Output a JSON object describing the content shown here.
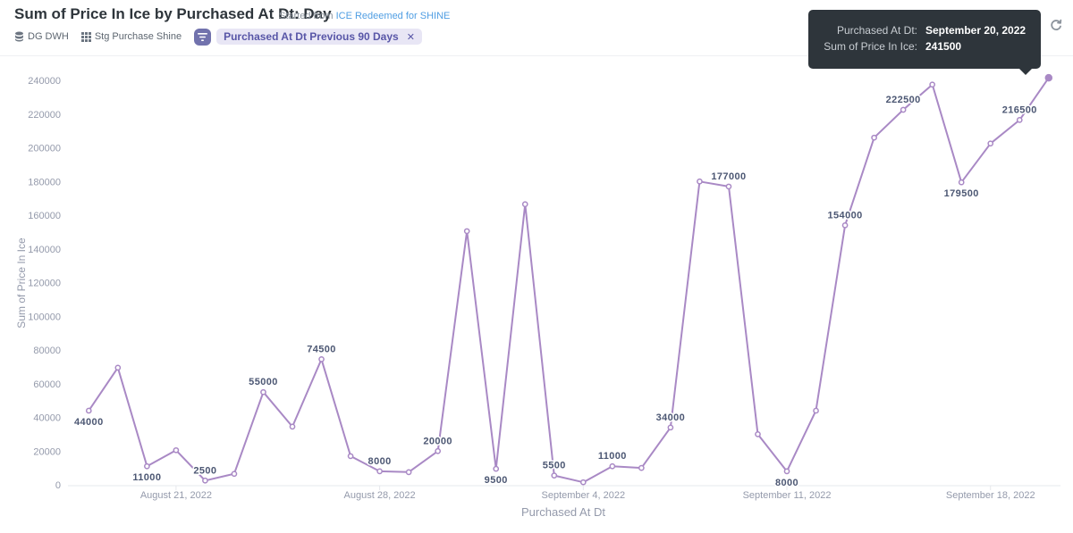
{
  "header": {
    "title": "Sum of Price In Ice by Purchased At Dt: Day",
    "started_prefix": "Started from",
    "started_link": "ICE Redeemed for SHINE",
    "database": "DG DWH",
    "table": "Stg Purchase Shine",
    "filter_label": "Purchased At Dt Previous 90 Days",
    "filter_remove": "✕"
  },
  "icons": {
    "database": "database-icon",
    "table": "grid-icon",
    "filter": "filter-icon",
    "remove": "close-icon",
    "refresh": "refresh-icon"
  },
  "tooltip": {
    "rows": [
      {
        "key": "Purchased At Dt:",
        "value": "September 20, 2022"
      },
      {
        "key": "Sum of Price In Ice:",
        "value": "241500"
      }
    ]
  },
  "colors": {
    "series": "#a989c5",
    "accent": "#509ee3",
    "filter": "#7172ad",
    "axis_text": "#949aab",
    "label_text": "#4c5773"
  },
  "chart_data": {
    "type": "line",
    "xlabel": "Purchased At Dt",
    "ylabel": "Sum of Price In Ice",
    "ylim": [
      0,
      240000
    ],
    "yticks": [
      0,
      20000,
      40000,
      60000,
      80000,
      100000,
      120000,
      140000,
      160000,
      180000,
      200000,
      220000,
      240000
    ],
    "xticks": [
      {
        "date": "2022-08-21",
        "label": "August 21, 2022"
      },
      {
        "date": "2022-08-28",
        "label": "August 28, 2022"
      },
      {
        "date": "2022-09-04",
        "label": "September 4, 2022"
      },
      {
        "date": "2022-09-11",
        "label": "September 11, 2022"
      },
      {
        "date": "2022-09-18",
        "label": "September 18, 2022"
      }
    ],
    "grid": false,
    "highlight": "2022-09-20",
    "series": [
      {
        "points": [
          {
            "x": "2022-08-18",
            "y": 44000,
            "label": "44000",
            "pos": "below"
          },
          {
            "x": "2022-08-19",
            "y": 69500
          },
          {
            "x": "2022-08-20",
            "y": 11000,
            "label": "11000",
            "pos": "below"
          },
          {
            "x": "2022-08-21",
            "y": 20500
          },
          {
            "x": "2022-08-22",
            "y": 2500,
            "label": "2500",
            "pos": "above"
          },
          {
            "x": "2022-08-23",
            "y": 6500
          },
          {
            "x": "2022-08-24",
            "y": 55000,
            "label": "55000",
            "pos": "above"
          },
          {
            "x": "2022-08-25",
            "y": 34500
          },
          {
            "x": "2022-08-26",
            "y": 74500,
            "label": "74500",
            "pos": "above"
          },
          {
            "x": "2022-08-27",
            "y": 17000
          },
          {
            "x": "2022-08-28",
            "y": 8000,
            "label": "8000",
            "pos": "above"
          },
          {
            "x": "2022-08-29",
            "y": 7500
          },
          {
            "x": "2022-08-30",
            "y": 20000,
            "label": "20000",
            "pos": "above"
          },
          {
            "x": "2022-08-31",
            "y": 150500
          },
          {
            "x": "2022-09-01",
            "y": 9500,
            "label": "9500",
            "pos": "below"
          },
          {
            "x": "2022-09-02",
            "y": 166500
          },
          {
            "x": "2022-09-03",
            "y": 5500,
            "label": "5500",
            "pos": "above"
          },
          {
            "x": "2022-09-04",
            "y": 1500
          },
          {
            "x": "2022-09-05",
            "y": 11000,
            "label": "11000",
            "pos": "above"
          },
          {
            "x": "2022-09-06",
            "y": 10000
          },
          {
            "x": "2022-09-07",
            "y": 34000,
            "label": "34000",
            "pos": "above"
          },
          {
            "x": "2022-09-08",
            "y": 180000
          },
          {
            "x": "2022-09-09",
            "y": 177000,
            "label": "177000",
            "pos": "above"
          },
          {
            "x": "2022-09-10",
            "y": 30000
          },
          {
            "x": "2022-09-11",
            "y": 8000,
            "label": "8000",
            "pos": "below"
          },
          {
            "x": "2022-09-12",
            "y": 44000
          },
          {
            "x": "2022-09-13",
            "y": 154000,
            "label": "154000",
            "pos": "above"
          },
          {
            "x": "2022-09-14",
            "y": 206000
          },
          {
            "x": "2022-09-15",
            "y": 222500,
            "label": "222500",
            "pos": "above"
          },
          {
            "x": "2022-09-16",
            "y": 237500
          },
          {
            "x": "2022-09-17",
            "y": 179500,
            "label": "179500",
            "pos": "below"
          },
          {
            "x": "2022-09-18",
            "y": 202500
          },
          {
            "x": "2022-09-19",
            "y": 216500,
            "label": "216500",
            "pos": "above"
          },
          {
            "x": "2022-09-20",
            "y": 241500
          }
        ]
      }
    ]
  }
}
